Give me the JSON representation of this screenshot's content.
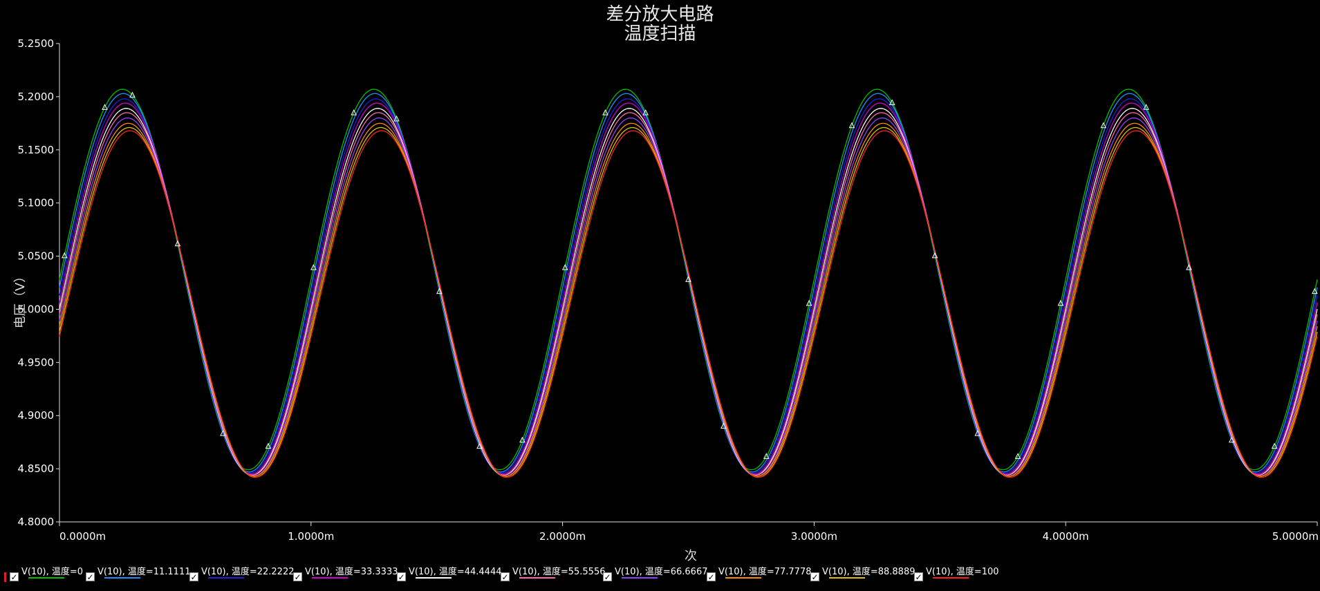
{
  "chart_data": {
    "type": "line",
    "title": "差分放大电路",
    "subtitle": "温度扫描",
    "xlabel": "次",
    "ylabel": "电压（V）",
    "xlim": [
      0,
      5.0
    ],
    "ylim": [
      4.8,
      5.25
    ],
    "x_unit": "ms",
    "x_ticks": [
      "0.0000m",
      "1.0000m",
      "2.0000m",
      "3.0000m",
      "4.0000m",
      "5.0000m"
    ],
    "x_tick_values": [
      0,
      1,
      2,
      3,
      4,
      5
    ],
    "y_ticks": [
      "4.8000",
      "4.8500",
      "4.9000",
      "4.9500",
      "5.0000",
      "5.0500",
      "5.1000",
      "5.1500",
      "5.2000",
      "5.2500"
    ],
    "y_tick_values": [
      4.8,
      4.85,
      4.9,
      4.95,
      5.0,
      5.05,
      5.1,
      5.15,
      5.2,
      5.25
    ],
    "signal": {
      "frequency_khz": 1,
      "phase_peak_ms": 0.25
    },
    "series": [
      {
        "name": "V(10), 温度=0",
        "color": "#00c000",
        "max": 5.207,
        "min": 4.849,
        "shift_ms": 0.0
      },
      {
        "name": "V(10), 温度=11.1111",
        "color": "#1e90ff",
        "max": 5.203,
        "min": 4.847,
        "shift_ms": 0.004
      },
      {
        "name": "V(10), 温度=22.2222",
        "color": "#2020e0",
        "max": 5.198,
        "min": 4.846,
        "shift_ms": 0.008
      },
      {
        "name": "V(10), 温度=33.3333",
        "color": "#d000d0",
        "max": 5.194,
        "min": 4.845,
        "shift_ms": 0.012
      },
      {
        "name": "V(10), 温度=44.4444",
        "color": "#ffffff",
        "max": 5.189,
        "min": 4.844,
        "shift_ms": 0.015
      },
      {
        "name": "V(10), 温度=55.5556",
        "color": "#ff69b4",
        "max": 5.185,
        "min": 4.844,
        "shift_ms": 0.018
      },
      {
        "name": "V(10), 温度=66.6667",
        "color": "#9040ff",
        "max": 5.18,
        "min": 4.843,
        "shift_ms": 0.021
      },
      {
        "name": "V(10), 温度=77.7778",
        "color": "#ff8c00",
        "max": 5.175,
        "min": 4.843,
        "shift_ms": 0.024
      },
      {
        "name": "V(10), 温度=88.8889",
        "color": "#e0c000",
        "max": 5.171,
        "min": 4.842,
        "shift_ms": 0.027
      },
      {
        "name": "V(10), 温度=100",
        "color": "#ff2020",
        "max": 5.168,
        "min": 4.842,
        "shift_ms": 0.03
      }
    ],
    "grid": false,
    "legend_position": "bottom"
  }
}
